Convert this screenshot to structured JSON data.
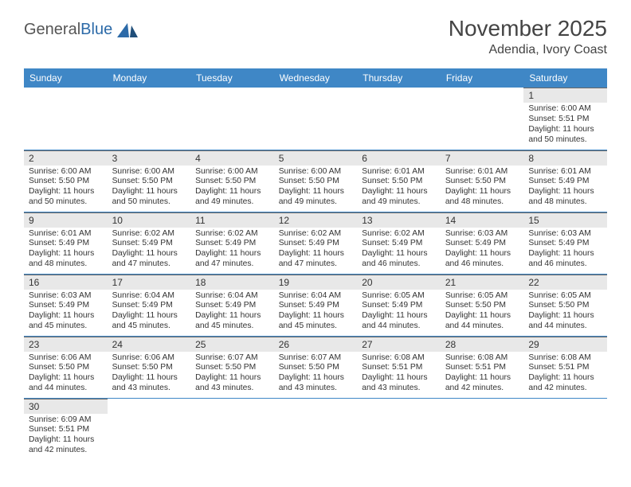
{
  "logo": {
    "text1": "General",
    "text2": "Blue"
  },
  "title": "November 2025",
  "location": "Adendia, Ivory Coast",
  "colors": {
    "header_bg": "#3f87c6",
    "header_fg": "#ffffff",
    "daynum_bg": "#e8e8e8",
    "border": "#3f87c6",
    "text": "#333333"
  },
  "weekdays": [
    "Sunday",
    "Monday",
    "Tuesday",
    "Wednesday",
    "Thursday",
    "Friday",
    "Saturday"
  ],
  "weeks": [
    [
      null,
      null,
      null,
      null,
      null,
      null,
      {
        "n": 1,
        "sr": "6:00 AM",
        "ss": "5:51 PM",
        "dl": "11 hours and 50 minutes."
      }
    ],
    [
      {
        "n": 2,
        "sr": "6:00 AM",
        "ss": "5:50 PM",
        "dl": "11 hours and 50 minutes."
      },
      {
        "n": 3,
        "sr": "6:00 AM",
        "ss": "5:50 PM",
        "dl": "11 hours and 50 minutes."
      },
      {
        "n": 4,
        "sr": "6:00 AM",
        "ss": "5:50 PM",
        "dl": "11 hours and 49 minutes."
      },
      {
        "n": 5,
        "sr": "6:00 AM",
        "ss": "5:50 PM",
        "dl": "11 hours and 49 minutes."
      },
      {
        "n": 6,
        "sr": "6:01 AM",
        "ss": "5:50 PM",
        "dl": "11 hours and 49 minutes."
      },
      {
        "n": 7,
        "sr": "6:01 AM",
        "ss": "5:50 PM",
        "dl": "11 hours and 48 minutes."
      },
      {
        "n": 8,
        "sr": "6:01 AM",
        "ss": "5:49 PM",
        "dl": "11 hours and 48 minutes."
      }
    ],
    [
      {
        "n": 9,
        "sr": "6:01 AM",
        "ss": "5:49 PM",
        "dl": "11 hours and 48 minutes."
      },
      {
        "n": 10,
        "sr": "6:02 AM",
        "ss": "5:49 PM",
        "dl": "11 hours and 47 minutes."
      },
      {
        "n": 11,
        "sr": "6:02 AM",
        "ss": "5:49 PM",
        "dl": "11 hours and 47 minutes."
      },
      {
        "n": 12,
        "sr": "6:02 AM",
        "ss": "5:49 PM",
        "dl": "11 hours and 47 minutes."
      },
      {
        "n": 13,
        "sr": "6:02 AM",
        "ss": "5:49 PM",
        "dl": "11 hours and 46 minutes."
      },
      {
        "n": 14,
        "sr": "6:03 AM",
        "ss": "5:49 PM",
        "dl": "11 hours and 46 minutes."
      },
      {
        "n": 15,
        "sr": "6:03 AM",
        "ss": "5:49 PM",
        "dl": "11 hours and 46 minutes."
      }
    ],
    [
      {
        "n": 16,
        "sr": "6:03 AM",
        "ss": "5:49 PM",
        "dl": "11 hours and 45 minutes."
      },
      {
        "n": 17,
        "sr": "6:04 AM",
        "ss": "5:49 PM",
        "dl": "11 hours and 45 minutes."
      },
      {
        "n": 18,
        "sr": "6:04 AM",
        "ss": "5:49 PM",
        "dl": "11 hours and 45 minutes."
      },
      {
        "n": 19,
        "sr": "6:04 AM",
        "ss": "5:49 PM",
        "dl": "11 hours and 45 minutes."
      },
      {
        "n": 20,
        "sr": "6:05 AM",
        "ss": "5:49 PM",
        "dl": "11 hours and 44 minutes."
      },
      {
        "n": 21,
        "sr": "6:05 AM",
        "ss": "5:50 PM",
        "dl": "11 hours and 44 minutes."
      },
      {
        "n": 22,
        "sr": "6:05 AM",
        "ss": "5:50 PM",
        "dl": "11 hours and 44 minutes."
      }
    ],
    [
      {
        "n": 23,
        "sr": "6:06 AM",
        "ss": "5:50 PM",
        "dl": "11 hours and 44 minutes."
      },
      {
        "n": 24,
        "sr": "6:06 AM",
        "ss": "5:50 PM",
        "dl": "11 hours and 43 minutes."
      },
      {
        "n": 25,
        "sr": "6:07 AM",
        "ss": "5:50 PM",
        "dl": "11 hours and 43 minutes."
      },
      {
        "n": 26,
        "sr": "6:07 AM",
        "ss": "5:50 PM",
        "dl": "11 hours and 43 minutes."
      },
      {
        "n": 27,
        "sr": "6:08 AM",
        "ss": "5:51 PM",
        "dl": "11 hours and 43 minutes."
      },
      {
        "n": 28,
        "sr": "6:08 AM",
        "ss": "5:51 PM",
        "dl": "11 hours and 42 minutes."
      },
      {
        "n": 29,
        "sr": "6:08 AM",
        "ss": "5:51 PM",
        "dl": "11 hours and 42 minutes."
      }
    ],
    [
      {
        "n": 30,
        "sr": "6:09 AM",
        "ss": "5:51 PM",
        "dl": "11 hours and 42 minutes."
      },
      null,
      null,
      null,
      null,
      null,
      null
    ]
  ],
  "labels": {
    "sunrise": "Sunrise:",
    "sunset": "Sunset:",
    "daylight": "Daylight:"
  }
}
